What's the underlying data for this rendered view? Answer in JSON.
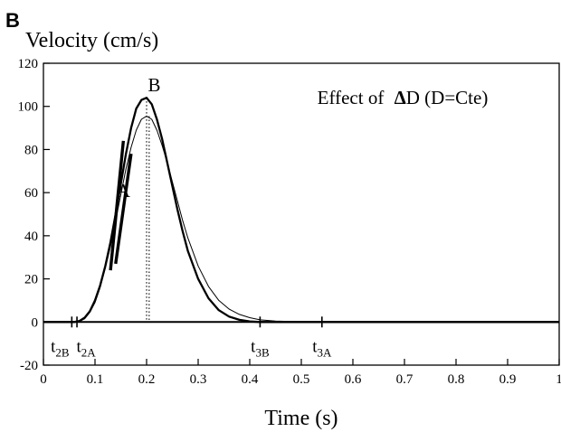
{
  "panel_label": "B",
  "chart_data": {
    "type": "line",
    "title": "Effect of ΔD (D=Cte)",
    "ylabel": "Velocity (cm/s)",
    "xlabel": "Time (s)",
    "xlim": [
      0,
      1
    ],
    "ylim": [
      -20,
      120
    ],
    "grid": false,
    "x_ticks": [
      "0",
      "0.1",
      "0.2",
      "0.3",
      "0.4",
      "0.5",
      "0.6",
      "0.7",
      "0.8",
      "0.9",
      "1"
    ],
    "y_ticks": [
      "-20",
      "0",
      "20",
      "40",
      "60",
      "80",
      "100",
      "120"
    ],
    "series": [
      {
        "name": "B",
        "stroke": "bold",
        "x": [
          0,
          0.055,
          0.06,
          0.07,
          0.08,
          0.09,
          0.1,
          0.11,
          0.12,
          0.13,
          0.14,
          0.15,
          0.16,
          0.17,
          0.18,
          0.19,
          0.2,
          0.21,
          0.22,
          0.23,
          0.24,
          0.25,
          0.26,
          0.27,
          0.28,
          0.3,
          0.32,
          0.34,
          0.36,
          0.38,
          0.4,
          0.42,
          0.45,
          0.5,
          0.6,
          1.0
        ],
        "y": [
          0,
          0,
          0,
          0.5,
          2,
          5,
          10,
          17,
          26,
          37,
          50,
          64,
          78,
          90,
          99,
          103,
          104,
          101,
          94,
          85,
          74,
          63,
          52,
          42,
          33,
          20,
          11,
          5.5,
          2.5,
          1,
          0.3,
          0,
          0,
          0,
          0,
          0
        ]
      },
      {
        "name": "A",
        "stroke": "thin",
        "x": [
          0,
          0.065,
          0.07,
          0.08,
          0.09,
          0.1,
          0.11,
          0.12,
          0.13,
          0.14,
          0.15,
          0.16,
          0.17,
          0.18,
          0.19,
          0.2,
          0.21,
          0.22,
          0.23,
          0.24,
          0.25,
          0.26,
          0.27,
          0.28,
          0.3,
          0.32,
          0.34,
          0.36,
          0.38,
          0.4,
          0.42,
          0.45,
          0.5,
          0.54,
          0.6,
          1.0
        ],
        "y": [
          0,
          0,
          0.3,
          1.5,
          4.5,
          9,
          16,
          25,
          35,
          47,
          59,
          71,
          81,
          89,
          94,
          95.5,
          94,
          89,
          82,
          74,
          65,
          56,
          47,
          39,
          26,
          16.5,
          10,
          6,
          3.5,
          2,
          1,
          0.4,
          0.1,
          0,
          0,
          0
        ]
      }
    ],
    "tangent_segments": [
      {
        "series": "B",
        "x": [
          0.13,
          0.155
        ],
        "y": [
          24,
          84
        ]
      },
      {
        "series": "A",
        "x": [
          0.14,
          0.17
        ],
        "y": [
          27,
          78
        ]
      }
    ],
    "peak_markers": [
      {
        "series": "B",
        "x": 0.2,
        "y": 104
      },
      {
        "series": "A",
        "x": 0.205,
        "y": 95.5
      }
    ],
    "time_markers": [
      {
        "label_main": "t",
        "label_sub": "2B",
        "x": 0.055
      },
      {
        "label_main": "t",
        "label_sub": "2A",
        "x": 0.065
      },
      {
        "label_main": "t",
        "label_sub": "3B",
        "x": 0.42
      },
      {
        "label_main": "t",
        "label_sub": "3A",
        "x": 0.54
      }
    ],
    "annotations": [
      {
        "text": "B",
        "x": 0.215,
        "y": 107
      },
      {
        "text": "A",
        "x": 0.155,
        "y": 58
      }
    ]
  }
}
